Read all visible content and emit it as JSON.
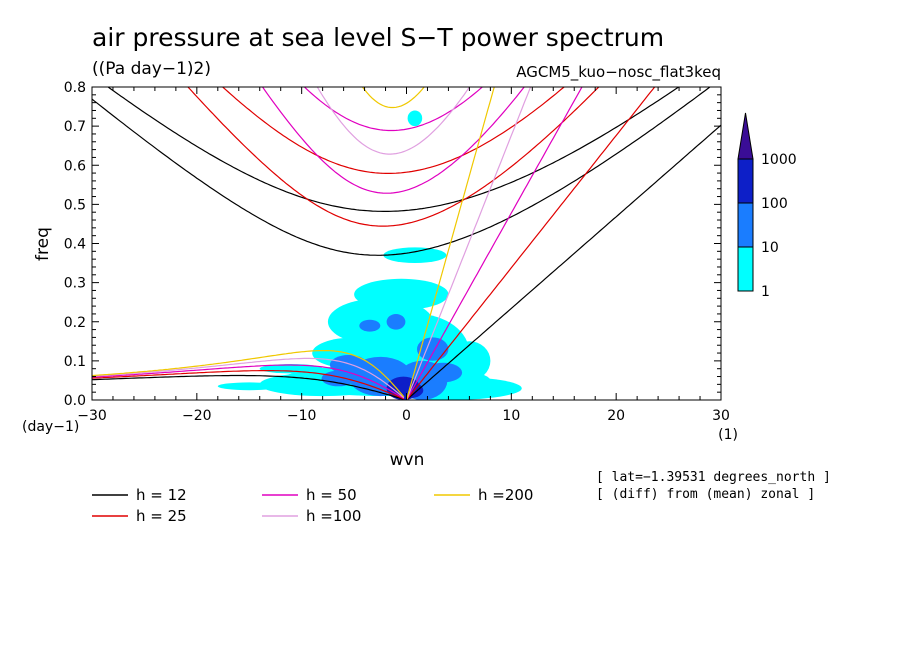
{
  "chart_data": {
    "type": "heatmap",
    "title": "air pressure at sea level S−T power spectrum",
    "units": "((Pa day−1)2)",
    "experiment": "AGCM5_kuo−nosc_flat3keq",
    "xlabel": "wvn",
    "ylabel": "freq",
    "x_unit": "(1)",
    "y_unit": "(day−1)",
    "xlim": [
      -30,
      30
    ],
    "ylim": [
      0,
      0.8
    ],
    "x_ticks": [
      -30,
      -20,
      -10,
      0,
      10,
      20,
      30
    ],
    "x_tick_labels": [
      "−30",
      "−20",
      "−10",
      "0",
      "10",
      "20",
      "30"
    ],
    "y_ticks": [
      0,
      0.1,
      0.2,
      0.3,
      0.4,
      0.5,
      0.6,
      0.7,
      0.8
    ],
    "y_tick_labels": [
      "0.0",
      "0.1",
      "0.2",
      "0.3",
      "0.4",
      "0.5",
      "0.6",
      "0.7",
      "0.8"
    ],
    "colorbar": {
      "levels": [
        1,
        10,
        100,
        1000
      ],
      "labels": [
        "1",
        "10",
        "100",
        "1000"
      ],
      "colors": [
        "#00ffff",
        "#1a7dff",
        "#0d1fc8",
        "#3a0d96"
      ]
    },
    "dispersion_curves": [
      {
        "label": "h = 12",
        "h": 12,
        "color": "#000000"
      },
      {
        "label": "h = 25",
        "h": 25,
        "color": "#e00000"
      },
      {
        "label": "h = 50",
        "h": 50,
        "color": "#e000c0"
      },
      {
        "label": "h =100",
        "h": 100,
        "color": "#e0a0e0"
      },
      {
        "label": "h =200",
        "h": 200,
        "color": "#f0c800"
      }
    ],
    "annotations": [
      "[ lat=−1.39531 degrees_north ]",
      "[ (diff) from (mean) zonal ]"
    ],
    "spectral_blobs": [
      {
        "k": -0.3,
        "f": 0.03,
        "rk": 1.6,
        "rf": 0.03,
        "level": 3
      },
      {
        "k": 0.4,
        "f": 0.025,
        "rk": 1.2,
        "rf": 0.02,
        "level": 3
      },
      {
        "k": -2.5,
        "f": 0.06,
        "rk": 3.0,
        "rf": 0.05,
        "level": 2
      },
      {
        "k": 1.5,
        "f": 0.05,
        "rk": 2.4,
        "rf": 0.05,
        "level": 2
      },
      {
        "k": -5.5,
        "f": 0.09,
        "rk": 1.8,
        "rf": 0.025,
        "level": 2
      },
      {
        "k": -3.5,
        "f": 0.19,
        "rk": 1.0,
        "rf": 0.015,
        "level": 2
      },
      {
        "k": -1.0,
        "f": 0.2,
        "rk": 0.9,
        "rf": 0.02,
        "level": 2
      },
      {
        "k": 2.5,
        "f": 0.13,
        "rk": 1.5,
        "rf": 0.03,
        "level": 2
      },
      {
        "k": -6.5,
        "f": 0.055,
        "rk": 1.6,
        "rf": 0.02,
        "level": 2
      },
      {
        "k": 3.5,
        "f": 0.07,
        "rk": 1.8,
        "rf": 0.025,
        "level": 2
      },
      {
        "k": -2.0,
        "f": 0.05,
        "rk": 10.0,
        "rf": 0.04,
        "level": 1
      },
      {
        "k": 1.0,
        "f": 0.12,
        "rk": 5.0,
        "rf": 0.1,
        "level": 1
      },
      {
        "k": -2.5,
        "f": 0.2,
        "rk": 5.0,
        "rf": 0.06,
        "level": 1
      },
      {
        "k": -0.5,
        "f": 0.27,
        "rk": 4.5,
        "rf": 0.04,
        "level": 1
      },
      {
        "k": 4.0,
        "f": 0.03,
        "rk": 7.0,
        "rf": 0.03,
        "level": 1
      },
      {
        "k": -8.0,
        "f": 0.04,
        "rk": 6.0,
        "rf": 0.03,
        "level": 1
      },
      {
        "k": -5.0,
        "f": 0.12,
        "rk": 4.0,
        "rf": 0.04,
        "level": 1
      },
      {
        "k": 0.8,
        "f": 0.37,
        "rk": 3.0,
        "rf": 0.02,
        "level": 1
      },
      {
        "k": 0.8,
        "f": 0.72,
        "rk": 0.7,
        "rf": 0.02,
        "level": 1
      },
      {
        "k": -15.0,
        "f": 0.035,
        "rk": 3.0,
        "rf": 0.01,
        "level": 1
      },
      {
        "k": 6.0,
        "f": 0.1,
        "rk": 2.0,
        "rf": 0.05,
        "level": 1
      },
      {
        "k": -11.0,
        "f": 0.08,
        "rk": 3.0,
        "rf": 0.012,
        "level": 1
      }
    ]
  }
}
